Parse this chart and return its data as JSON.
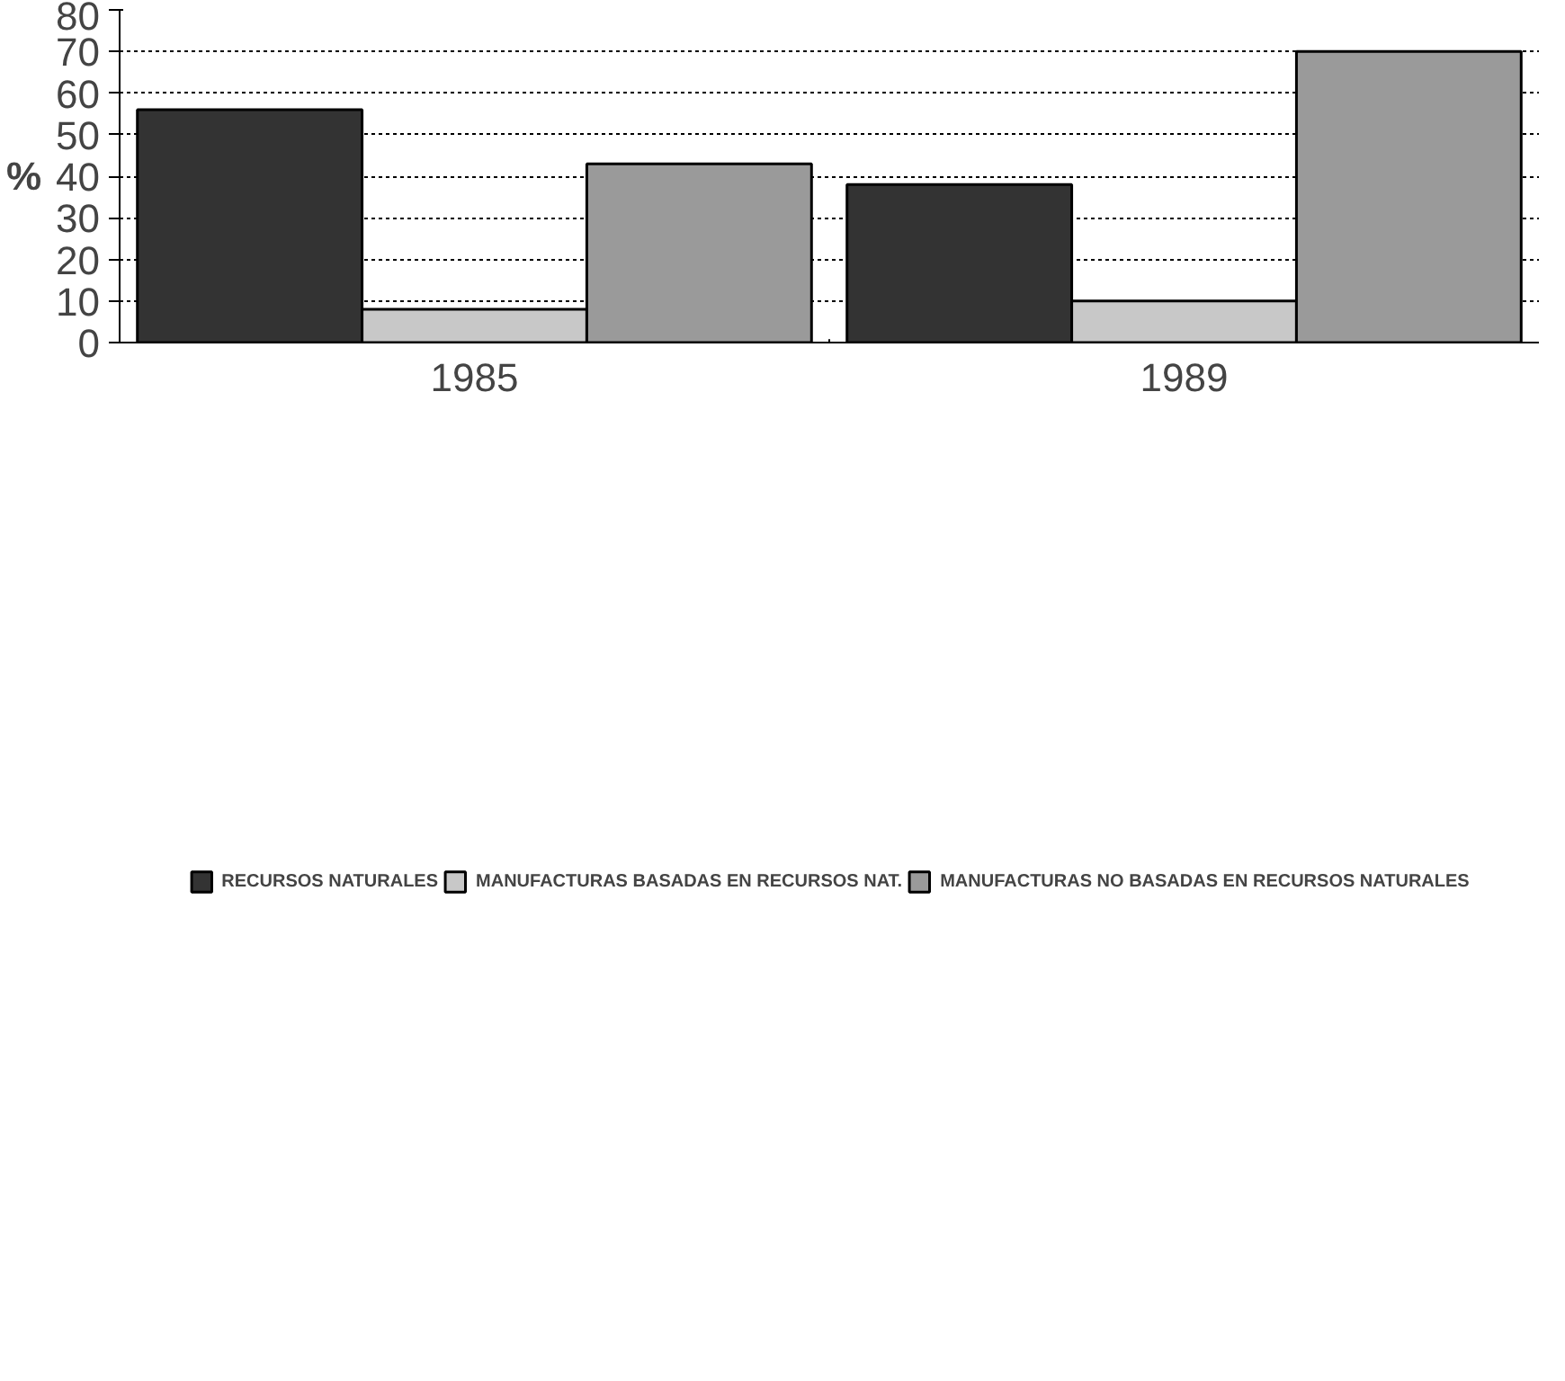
{
  "chart_data": {
    "type": "bar",
    "ylabel": "%",
    "categories": [
      "1985",
      "1989"
    ],
    "series": [
      {
        "name": "RECURSOS NATURALES",
        "color": "#333333",
        "values": [
          56,
          38
        ]
      },
      {
        "name": "MANUFACTURAS BASADAS EN RECURSOS NAT.",
        "color": "#c8c8c8",
        "values": [
          8,
          10
        ]
      },
      {
        "name": "MANUFACTURAS NO BASADAS EN RECURSOS NATURALES",
        "color": "#9a9a9a",
        "values": [
          43,
          70
        ]
      }
    ],
    "ylim": [
      0,
      80
    ],
    "yticks": [
      0,
      10,
      20,
      30,
      40,
      50,
      60,
      70,
      80
    ],
    "grid": "y",
    "legend": "bottom"
  }
}
